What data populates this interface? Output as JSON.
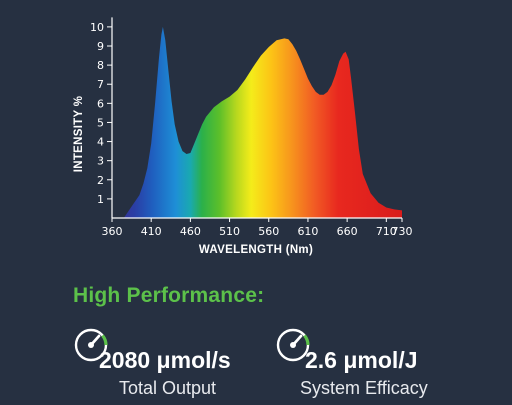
{
  "chart_data": {
    "type": "area",
    "xlabel": "WAVELENGTH (Nm)",
    "ylabel": "INTENSITY %",
    "xlim": [
      360,
      730
    ],
    "ylim": [
      0,
      10.5
    ],
    "x_ticks": [
      360,
      410,
      460,
      510,
      560,
      610,
      660,
      710,
      730
    ],
    "y_ticks": [
      1,
      2,
      3,
      4,
      5,
      6,
      7,
      8,
      9,
      10
    ],
    "grid": false,
    "fill": "visible-spectrum gradient (violet to red by wavelength)",
    "x": [
      375,
      385,
      395,
      400,
      405,
      410,
      415,
      420,
      423,
      425,
      428,
      432,
      436,
      440,
      445,
      450,
      455,
      460,
      465,
      470,
      475,
      480,
      490,
      500,
      510,
      520,
      530,
      540,
      550,
      560,
      570,
      580,
      585,
      590,
      595,
      600,
      605,
      610,
      615,
      620,
      625,
      630,
      635,
      640,
      645,
      650,
      655,
      658,
      662,
      665,
      670,
      675,
      680,
      690,
      700,
      710,
      720,
      730
    ],
    "y": [
      0.0,
      0.6,
      1.2,
      1.8,
      2.6,
      3.9,
      6.0,
      8.4,
      9.6,
      10.0,
      9.3,
      7.7,
      6.1,
      4.9,
      4.0,
      3.5,
      3.35,
      3.4,
      3.9,
      4.4,
      4.9,
      5.3,
      5.8,
      6.1,
      6.35,
      6.7,
      7.25,
      7.9,
      8.5,
      8.95,
      9.3,
      9.4,
      9.35,
      9.1,
      8.75,
      8.3,
      7.8,
      7.3,
      6.9,
      6.6,
      6.45,
      6.45,
      6.6,
      6.95,
      7.5,
      8.2,
      8.6,
      8.7,
      8.3,
      7.3,
      5.5,
      3.6,
      2.3,
      1.3,
      0.8,
      0.55,
      0.45,
      0.4
    ]
  },
  "performance": {
    "heading": "High Performance:",
    "metrics": [
      {
        "value": "2080 μmol/s",
        "caption": "Total Output",
        "icon": "gauge-icon",
        "accent": "#5cc14a"
      },
      {
        "value": "2.6 μmol/J",
        "caption": "System Efficacy",
        "icon": "gauge-icon",
        "accent": "#5cc14a"
      }
    ]
  }
}
